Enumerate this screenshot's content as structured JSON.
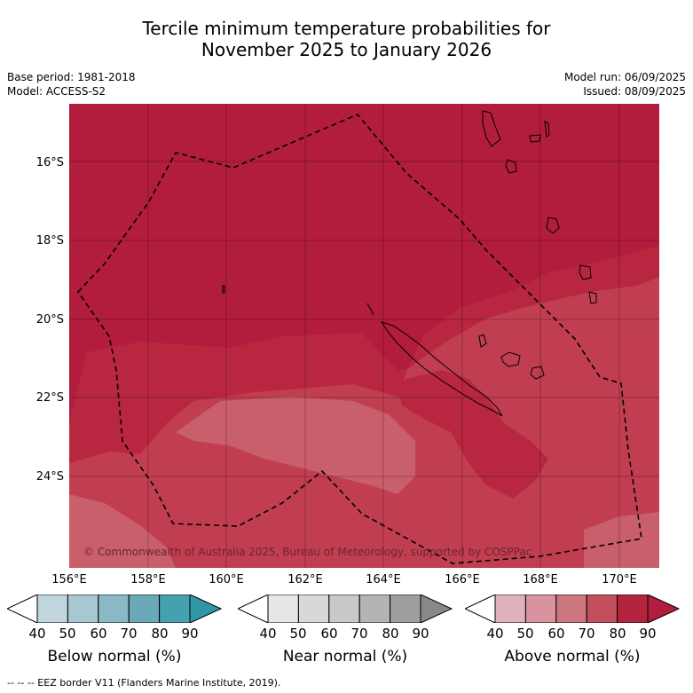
{
  "title_line1": "Tercile minimum temperature probabilities for",
  "title_line2": "November 2025 to January 2026",
  "base_period": "Base period: 1981-2018",
  "model": "Model: ACCESS-S2",
  "model_run": "Model run: 06/09/2025",
  "issued": "Issued: 08/09/2025",
  "lat_labels": [
    "16°S",
    "18°S",
    "20°S",
    "22°S",
    "24°S"
  ],
  "lon_labels": [
    "156°E",
    "158°E",
    "160°E",
    "162°E",
    "164°E",
    "166°E",
    "168°E",
    "170°E"
  ],
  "copyright": "© Commonwealth of Australia 2025, Bureau of Meteorology, supported by COSPPac",
  "colorbars": [
    {
      "label": "Below normal (%)",
      "ticks": [
        "40",
        "50",
        "60",
        "70",
        "80",
        "90"
      ],
      "colors": [
        "#c1d5dc",
        "#a8c8d1",
        "#8ab8c5",
        "#6aa9b7",
        "#45a0b0",
        "#2f97a8"
      ]
    },
    {
      "label": "Near normal (%)",
      "ticks": [
        "40",
        "50",
        "60",
        "70",
        "80",
        "90"
      ],
      "colors": [
        "#e6e6e6",
        "#d8d8d8",
        "#c8c8c8",
        "#b4b4b4",
        "#9e9e9e",
        "#888888"
      ]
    },
    {
      "label": "Above normal (%)",
      "ticks": [
        "40",
        "50",
        "60",
        "70",
        "80",
        "90"
      ],
      "colors": [
        "#dfb2bb",
        "#d8939e",
        "#cc7680",
        "#c34f5c",
        "#b4243e",
        "#b21c3d"
      ]
    }
  ],
  "footer": "-- -- -- EEZ border V11 (Flanders Marine Institute, 2019).",
  "map_colors": {
    "c90": "#b21c3d",
    "c80": "#b8273f",
    "c70": "#c03e4f",
    "c60": "#c85f6a"
  }
}
